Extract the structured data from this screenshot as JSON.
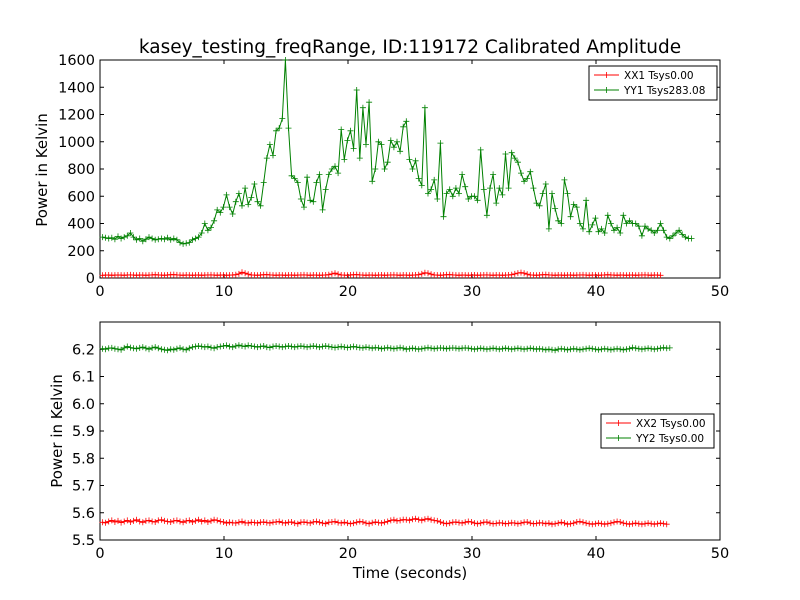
{
  "title": "kasey_testing_freqRange, ID:119172 Calibrated Amplitude",
  "chart_data": [
    {
      "type": "line",
      "ylabel": "Power in Kelvin",
      "xlabel": "",
      "xlim": [
        0,
        50
      ],
      "ylim": [
        0,
        1600
      ],
      "xticks": [
        "0",
        "10",
        "20",
        "30",
        "40",
        "50"
      ],
      "yticks": [
        "0",
        "200",
        "400",
        "600",
        "800",
        "1000",
        "1200",
        "1400",
        "1600"
      ],
      "legend": {
        "location": "top-right"
      },
      "series": [
        {
          "name": "XX1 Tsys0.00",
          "color": "#ff0000",
          "x_start": 0.2,
          "x_step": 0.25,
          "values": [
            20,
            21,
            22,
            20,
            21,
            22,
            21,
            20,
            22,
            23,
            21,
            20,
            22,
            21,
            20,
            21,
            23,
            24,
            22,
            21,
            20,
            22,
            24,
            25,
            23,
            21,
            20,
            22,
            21,
            20,
            21,
            22,
            20,
            21,
            22,
            23,
            21,
            20,
            22,
            21,
            20,
            21,
            22,
            24,
            30,
            42,
            35,
            28,
            22,
            21,
            20,
            22,
            24,
            25,
            23,
            21,
            20,
            22,
            21,
            20,
            21,
            22,
            20,
            21,
            22,
            23,
            21,
            20,
            22,
            21,
            20,
            21,
            22,
            24,
            30,
            35,
            28,
            22,
            21,
            20,
            22,
            24,
            25,
            23,
            21,
            20,
            22,
            21,
            20,
            21,
            22,
            20,
            21,
            22,
            23,
            21,
            20,
            22,
            21,
            20,
            21,
            22,
            24,
            30,
            38,
            35,
            28,
            22,
            21,
            20,
            22,
            24,
            25,
            23,
            21,
            20,
            22,
            21,
            20,
            21,
            22,
            20,
            21,
            22,
            23,
            21,
            20,
            22,
            21,
            20,
            21,
            22,
            24,
            30,
            36,
            40,
            35,
            28,
            22,
            21,
            20,
            22,
            24,
            25,
            23,
            21,
            20,
            22,
            21,
            20,
            21,
            22,
            20,
            21,
            22,
            23,
            21,
            20,
            22,
            21,
            20,
            21,
            22,
            24,
            22,
            21,
            20,
            22,
            21,
            20,
            21,
            22,
            20,
            21,
            22,
            23,
            21,
            20,
            22,
            21,
            20
          ]
        },
        {
          "name": "YY1 Tsys283.08",
          "color": "#008000",
          "x_start": 0.2,
          "x_step": 0.25,
          "values": [
            300,
            295,
            290,
            295,
            285,
            305,
            290,
            300,
            310,
            330,
            300,
            280,
            290,
            270,
            285,
            300,
            290,
            280,
            285,
            290,
            285,
            295,
            280,
            290,
            280,
            260,
            250,
            255,
            260,
            280,
            290,
            300,
            330,
            400,
            350,
            370,
            420,
            500,
            480,
            520,
            610,
            520,
            470,
            560,
            620,
            530,
            660,
            540,
            590,
            690,
            560,
            530,
            700,
            880,
            980,
            900,
            1080,
            1100,
            1170,
            1600,
            1100,
            750,
            730,
            700,
            580,
            520,
            740,
            570,
            560,
            700,
            760,
            500,
            650,
            760,
            800,
            820,
            770,
            1090,
            870,
            1010,
            1080,
            950,
            1380,
            880,
            1250,
            980,
            1290,
            710,
            800,
            1000,
            980,
            800,
            850,
            1010,
            960,
            1000,
            930,
            1110,
            1150,
            870,
            800,
            860,
            730,
            680,
            1250,
            620,
            650,
            720,
            580,
            990,
            450,
            620,
            650,
            600,
            660,
            620,
            760,
            670,
            580,
            600,
            600,
            570,
            940,
            650,
            460,
            660,
            760,
            550,
            660,
            610,
            910,
            660,
            920,
            880,
            850,
            770,
            710,
            730,
            780,
            660,
            550,
            530,
            620,
            690,
            360,
            620,
            510,
            420,
            400,
            720,
            620,
            450,
            540,
            520,
            400,
            360,
            570,
            340,
            390,
            440,
            340,
            360,
            330,
            460,
            400,
            350,
            370,
            330,
            460,
            400,
            420,
            400,
            400,
            380,
            310,
            380,
            360,
            350,
            330,
            350,
            400,
            350,
            300,
            290,
            310,
            330,
            350,
            320,
            300,
            290,
            290
          ]
        }
      ]
    },
    {
      "type": "line",
      "ylabel": "Power in Kelvin",
      "xlabel": "Time (seconds)",
      "xlim": [
        0,
        50
      ],
      "ylim": [
        5.5,
        6.3
      ],
      "xticks": [
        "0",
        "10",
        "20",
        "30",
        "40",
        "50"
      ],
      "yticks": [
        "5.5",
        "5.6",
        "5.7",
        "5.8",
        "5.9",
        "6.0",
        "6.1",
        "6.2"
      ],
      "legend": {
        "location": "center-right"
      },
      "series": [
        {
          "name": "XX2 Tsys0.00",
          "color": "#ff0000",
          "x_start": 0.2,
          "x_step": 0.25,
          "values": [
            5.565,
            5.563,
            5.568,
            5.572,
            5.566,
            5.57,
            5.564,
            5.568,
            5.572,
            5.566,
            5.57,
            5.574,
            5.568,
            5.565,
            5.57,
            5.572,
            5.568,
            5.566,
            5.572,
            5.574,
            5.57,
            5.568,
            5.566,
            5.57,
            5.572,
            5.568,
            5.565,
            5.57,
            5.572,
            5.566,
            5.57,
            5.574,
            5.568,
            5.572,
            5.566,
            5.57,
            5.574,
            5.572,
            5.568,
            5.566,
            5.562,
            5.565,
            5.563,
            5.562,
            5.565,
            5.568,
            5.563,
            5.562,
            5.565,
            5.564,
            5.562,
            5.565,
            5.566,
            5.564,
            5.562,
            5.565,
            5.566,
            5.568,
            5.564,
            5.562,
            5.565,
            5.566,
            5.562,
            5.56,
            5.565,
            5.566,
            5.564,
            5.562,
            5.566,
            5.568,
            5.565,
            5.562,
            5.56,
            5.565,
            5.566,
            5.568,
            5.564,
            5.562,
            5.565,
            5.562,
            5.56,
            5.562,
            5.565,
            5.568,
            5.566,
            5.562,
            5.56,
            5.563,
            5.566,
            5.564,
            5.562,
            5.565,
            5.568,
            5.572,
            5.574,
            5.57,
            5.572,
            5.575,
            5.574,
            5.572,
            5.576,
            5.578,
            5.575,
            5.572,
            5.576,
            5.578,
            5.574,
            5.572,
            5.57,
            5.566,
            5.562,
            5.56,
            5.562,
            5.565,
            5.566,
            5.564,
            5.562,
            5.565,
            5.568,
            5.566,
            5.562,
            5.56,
            5.562,
            5.565,
            5.566,
            5.562,
            5.56,
            5.561,
            5.563,
            5.562,
            5.56,
            5.561,
            5.563,
            5.562,
            5.56,
            5.562,
            5.565,
            5.566,
            5.562,
            5.56,
            5.561,
            5.563,
            5.562,
            5.56,
            5.562,
            5.558,
            5.56,
            5.562,
            5.565,
            5.562,
            5.558,
            5.56,
            5.562,
            5.566,
            5.568,
            5.565,
            5.562,
            5.56,
            5.558,
            5.56,
            5.562,
            5.56,
            5.558,
            5.56,
            5.562,
            5.565,
            5.568,
            5.566,
            5.562,
            5.56,
            5.558,
            5.56,
            5.562,
            5.56,
            5.558,
            5.56,
            5.562,
            5.56,
            5.558,
            5.56,
            5.562,
            5.56,
            5.558
          ]
        },
        {
          "name": "YY2 Tsys0.00",
          "color": "#008000",
          "x_start": 0.2,
          "x_step": 0.25,
          "values": [
            6.202,
            6.2,
            6.204,
            6.205,
            6.202,
            6.2,
            6.198,
            6.205,
            6.21,
            6.206,
            6.204,
            6.202,
            6.205,
            6.208,
            6.204,
            6.2,
            6.205,
            6.208,
            6.204,
            6.2,
            6.198,
            6.196,
            6.2,
            6.198,
            6.202,
            6.205,
            6.2,
            6.198,
            6.204,
            6.208,
            6.21,
            6.212,
            6.21,
            6.208,
            6.21,
            6.206,
            6.204,
            6.208,
            6.21,
            6.212,
            6.214,
            6.21,
            6.208,
            6.212,
            6.215,
            6.212,
            6.21,
            6.214,
            6.212,
            6.21,
            6.208,
            6.21,
            6.212,
            6.208,
            6.206,
            6.21,
            6.212,
            6.21,
            6.208,
            6.21,
            6.212,
            6.21,
            6.208,
            6.21,
            6.212,
            6.21,
            6.208,
            6.21,
            6.212,
            6.21,
            6.208,
            6.21,
            6.212,
            6.21,
            6.208,
            6.206,
            6.208,
            6.21,
            6.208,
            6.206,
            6.208,
            6.21,
            6.208,
            6.206,
            6.205,
            6.208,
            6.206,
            6.204,
            6.206,
            6.205,
            6.202,
            6.204,
            6.206,
            6.204,
            6.202,
            6.204,
            6.206,
            6.204,
            6.2,
            6.202,
            6.204,
            6.202,
            6.2,
            6.202,
            6.204,
            6.206,
            6.204,
            6.202,
            6.204,
            6.205,
            6.204,
            6.202,
            6.204,
            6.205,
            6.204,
            6.202,
            6.204,
            6.205,
            6.204,
            6.202,
            6.2,
            6.202,
            6.204,
            6.202,
            6.2,
            6.202,
            6.204,
            6.202,
            6.2,
            6.202,
            6.204,
            6.202,
            6.2,
            6.202,
            6.204,
            6.202,
            6.2,
            6.202,
            6.204,
            6.202,
            6.2,
            6.202,
            6.2,
            6.198,
            6.2,
            6.198,
            6.196,
            6.2,
            6.202,
            6.2,
            6.198,
            6.2,
            6.202,
            6.2,
            6.198,
            6.2,
            6.202,
            6.204,
            6.202,
            6.2,
            6.198,
            6.2,
            6.202,
            6.2,
            6.198,
            6.2,
            6.202,
            6.2,
            6.198,
            6.2,
            6.202,
            6.206,
            6.204,
            6.202,
            6.2,
            6.202,
            6.204,
            6.202,
            6.2,
            6.202,
            6.204,
            6.206,
            6.204,
            6.205
          ]
        }
      ]
    }
  ]
}
